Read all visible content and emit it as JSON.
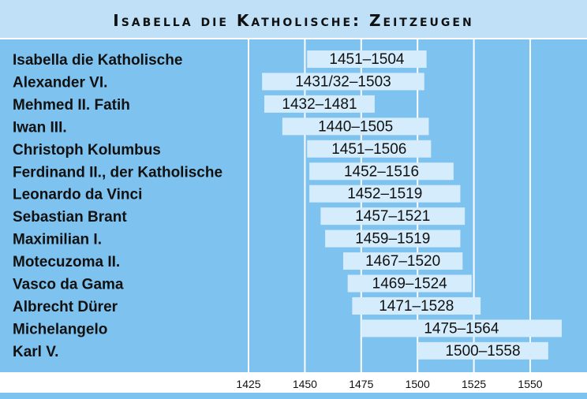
{
  "chart_data": {
    "type": "bar",
    "title": "Isabella die Katholische: Zeitzeugen",
    "x_ticks": [
      1425,
      1450,
      1475,
      1500,
      1525,
      1550
    ],
    "x_range": [
      1425,
      1566
    ],
    "grid": true,
    "colors": {
      "background": "#7ec2ef",
      "bar": "#d4ecfb",
      "grid": "#ffffff",
      "text": "#111111",
      "title_band": "#bfe0f7"
    },
    "rows": [
      {
        "name": "Isabella die Katholische",
        "start": 1451,
        "end": 1504,
        "label": "1451–1504"
      },
      {
        "name": "Alexander VI.",
        "start": 1431,
        "end": 1503,
        "label": "1431/32–1503"
      },
      {
        "name": "Mehmed II. Fatih",
        "start": 1432,
        "end": 1481,
        "label": "1432–1481"
      },
      {
        "name": "Iwan III.",
        "start": 1440,
        "end": 1505,
        "label": "1440–1505"
      },
      {
        "name": "Christoph Kolumbus",
        "start": 1451,
        "end": 1506,
        "label": "1451–1506"
      },
      {
        "name": "Ferdinand II., der Katholische",
        "start": 1452,
        "end": 1516,
        "label": "1452–1516"
      },
      {
        "name": "Leonardo da Vinci",
        "start": 1452,
        "end": 1519,
        "label": "1452–1519"
      },
      {
        "name": "Sebastian Brant",
        "start": 1457,
        "end": 1521,
        "label": "1457–1521"
      },
      {
        "name": "Maximilian I.",
        "start": 1459,
        "end": 1519,
        "label": "1459–1519"
      },
      {
        "name": "Motecuzoma II.",
        "start": 1467,
        "end": 1520,
        "label": "1467–1520"
      },
      {
        "name": "Vasco da Gama",
        "start": 1469,
        "end": 1524,
        "label": "1469–1524"
      },
      {
        "name": "Albrecht Dürer",
        "start": 1471,
        "end": 1528,
        "label": "1471–1528"
      },
      {
        "name": "Michelangelo",
        "start": 1475,
        "end": 1564,
        "label": "1475–1564"
      },
      {
        "name": "Karl V.",
        "start": 1500,
        "end": 1558,
        "label": "1500–1558"
      }
    ]
  }
}
